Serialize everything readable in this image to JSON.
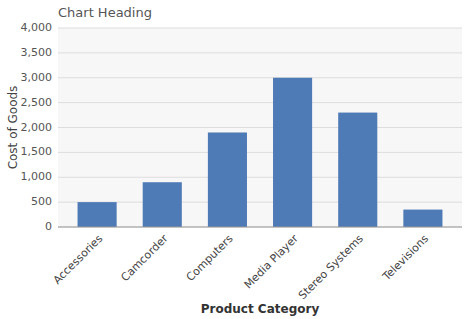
{
  "chart_data": {
    "type": "bar",
    "title": "Chart Heading",
    "xlabel": "Product Category",
    "ylabel": "Cost of Goods",
    "categories": [
      "Accessories",
      "Camcorder",
      "Computers",
      "Media Player",
      "Stereo Systems",
      "Televisions"
    ],
    "values": [
      500,
      900,
      1900,
      3000,
      2300,
      350
    ],
    "color": "#4e7ab5",
    "ylim": [
      0,
      4000
    ],
    "yticks": [
      0,
      500,
      {
        "value": 1000,
        "label": "1,000"
      },
      {
        "value": 1500,
        "label": "1,500"
      },
      {
        "value": 2000,
        "label": "2,000"
      },
      {
        "value": 2500,
        "label": "2,500"
      },
      {
        "value": 3000,
        "label": "3,000"
      },
      {
        "value": 3500,
        "label": "3,500"
      },
      {
        "value": 4000,
        "label": "4,000"
      }
    ],
    "grid": true
  }
}
